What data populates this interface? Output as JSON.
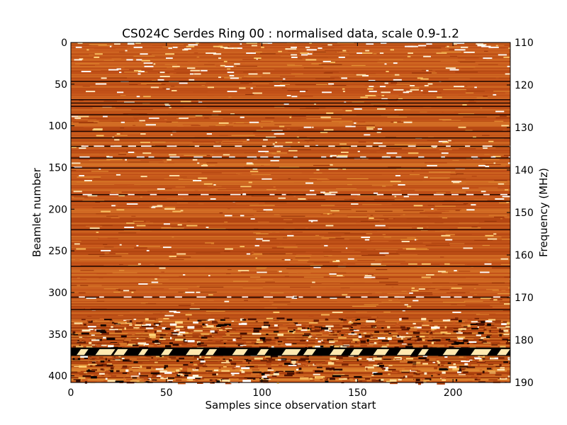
{
  "chart_data": {
    "type": "heatmap",
    "title": "CS024C Serdes Ring 00 : normalised data, scale 0.9-1.2",
    "xlabel": "Samples since observation start",
    "ylabel": "Beamlet number",
    "y2label": "Frequency (MHz)",
    "xlim": [
      0,
      230
    ],
    "ylim": [
      408,
      0
    ],
    "y2lim": [
      190,
      110
    ],
    "xticks": [
      0,
      50,
      100,
      150,
      200
    ],
    "yticks": [
      0,
      50,
      100,
      150,
      200,
      250,
      300,
      350,
      400
    ],
    "y2ticks": [
      110,
      120,
      130,
      140,
      150,
      160,
      170,
      180,
      190
    ],
    "color_scale": [
      0.9,
      1.2
    ],
    "colormap": [
      "#000000",
      "#5a1400",
      "#a0390a",
      "#c6541a",
      "#e08a30",
      "#ffd070",
      "#ffffff"
    ],
    "background_level": 1.05,
    "dark_rows": [
      46,
      68,
      72,
      76,
      86,
      106,
      114,
      124,
      138,
      150,
      182,
      190,
      224,
      268,
      305,
      320
    ],
    "bright_rows": [
      124,
      137,
      182,
      305
    ],
    "disturbed_band": [
      330,
      408
    ],
    "saturated_band": [
      366,
      376
    ],
    "grid": false
  }
}
